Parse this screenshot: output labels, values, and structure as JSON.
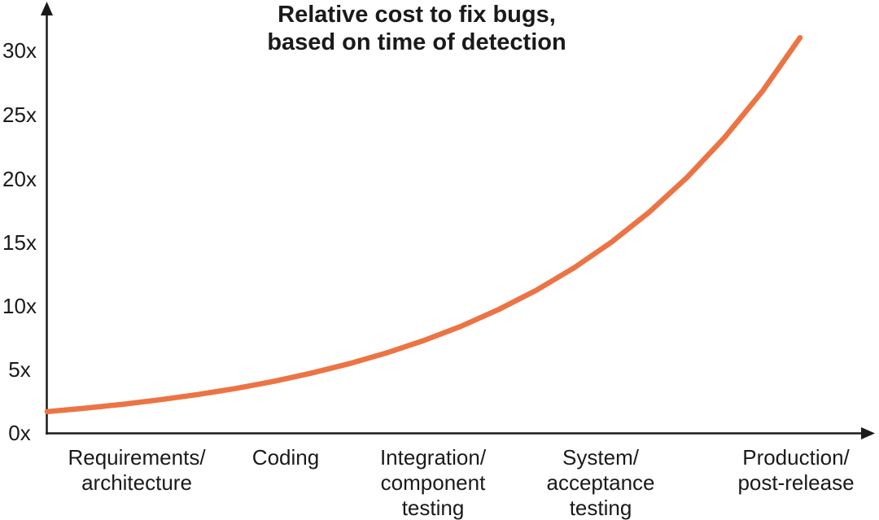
{
  "chart_data": {
    "type": "line",
    "title_line1": "Relative cost to fix bugs,",
    "title_line2": "based on time of detection",
    "xlabel": "",
    "ylabel": "",
    "grid": false,
    "legend": false,
    "line_color": "#EC7444",
    "axis_color": "#1A1A1A",
    "ylim": [
      0,
      32
    ],
    "y_ticks": [
      {
        "label": "0x",
        "value": 0
      },
      {
        "label": "5x",
        "value": 5
      },
      {
        "label": "10x",
        "value": 10
      },
      {
        "label": "15x",
        "value": 15
      },
      {
        "label": "20x",
        "value": 20
      },
      {
        "label": "25x",
        "value": 25
      },
      {
        "label": "30x",
        "value": 30
      }
    ],
    "x_categories": [
      {
        "lines": [
          "Requirements/",
          "architecture"
        ]
      },
      {
        "lines": [
          "Coding"
        ]
      },
      {
        "lines": [
          "Integration/",
          "component",
          "testing"
        ]
      },
      {
        "lines": [
          "System/",
          "acceptance",
          "testing"
        ]
      },
      {
        "lines": [
          "Production/",
          "post-release"
        ]
      }
    ],
    "values_at_categories": [
      2.4,
      4.3,
      7.6,
      14.4,
      30
    ],
    "curve": {
      "shape": "exponential",
      "start_value": 1.7,
      "end_value": 31,
      "points": [
        {
          "t": 0.0,
          "v": 1.7
        },
        {
          "t": 0.05,
          "v": 1.97
        },
        {
          "t": 0.1,
          "v": 2.27
        },
        {
          "t": 0.15,
          "v": 2.63
        },
        {
          "t": 0.2,
          "v": 3.04
        },
        {
          "t": 0.25,
          "v": 3.51
        },
        {
          "t": 0.3,
          "v": 4.06
        },
        {
          "t": 0.35,
          "v": 4.7
        },
        {
          "t": 0.4,
          "v": 5.43
        },
        {
          "t": 0.45,
          "v": 6.28
        },
        {
          "t": 0.5,
          "v": 7.26
        },
        {
          "t": 0.55,
          "v": 8.39
        },
        {
          "t": 0.6,
          "v": 9.7
        },
        {
          "t": 0.65,
          "v": 11.21
        },
        {
          "t": 0.7,
          "v": 12.96
        },
        {
          "t": 0.75,
          "v": 14.99
        },
        {
          "t": 0.8,
          "v": 17.33
        },
        {
          "t": 0.85,
          "v": 20.04
        },
        {
          "t": 0.9,
          "v": 23.17
        },
        {
          "t": 0.95,
          "v": 26.78
        },
        {
          "t": 1.0,
          "v": 30.97
        }
      ]
    }
  }
}
